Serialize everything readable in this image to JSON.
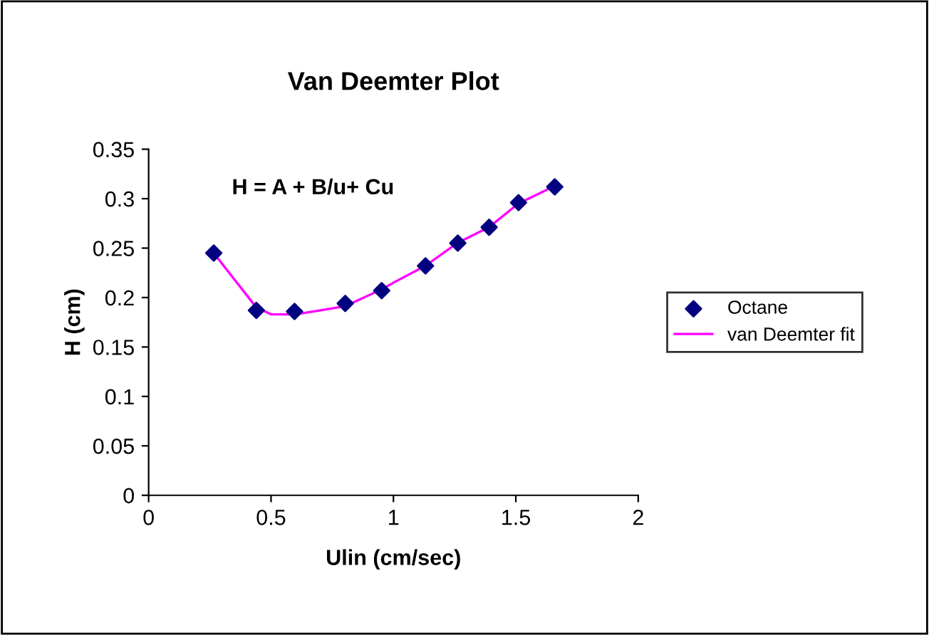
{
  "chart_data": {
    "type": "scatter",
    "title": "Van Deemter Plot",
    "xlabel": "Ulin (cm/sec)",
    "ylabel": "H (cm)",
    "annotations": [
      "H = A + B/u+ Cu"
    ],
    "x": [
      0.266,
      0.44,
      0.596,
      0.803,
      0.952,
      1.131,
      1.263,
      1.391,
      1.511,
      1.659
    ],
    "series": [
      {
        "name": "Octane",
        "color": "#000080",
        "marker": "diamond",
        "values": [
          0.245,
          0.187,
          0.186,
          0.194,
          0.207,
          0.232,
          0.255,
          0.271,
          0.296,
          0.312
        ]
      },
      {
        "name": "van Deemter fit",
        "type": "line",
        "color": "#ff00ff",
        "marker": "none",
        "line_style": "solid",
        "x": [
          0.266,
          0.44,
          0.5,
          0.6,
          0.8,
          0.95,
          1.0,
          1.13,
          1.26,
          1.39,
          1.51,
          1.66
        ],
        "values": [
          0.245,
          0.19,
          0.183,
          0.183,
          0.191,
          0.208,
          0.215,
          0.232,
          0.255,
          0.271,
          0.295,
          0.313
        ]
      }
    ],
    "xlim": [
      0,
      2
    ],
    "xticks": [
      0,
      0.5,
      1,
      1.5,
      2
    ],
    "ylim": [
      0,
      0.35
    ],
    "yticks": [
      0,
      0.05,
      0.1,
      0.15,
      0.2,
      0.25,
      0.3,
      0.35
    ],
    "grid": false,
    "legend": "right"
  }
}
